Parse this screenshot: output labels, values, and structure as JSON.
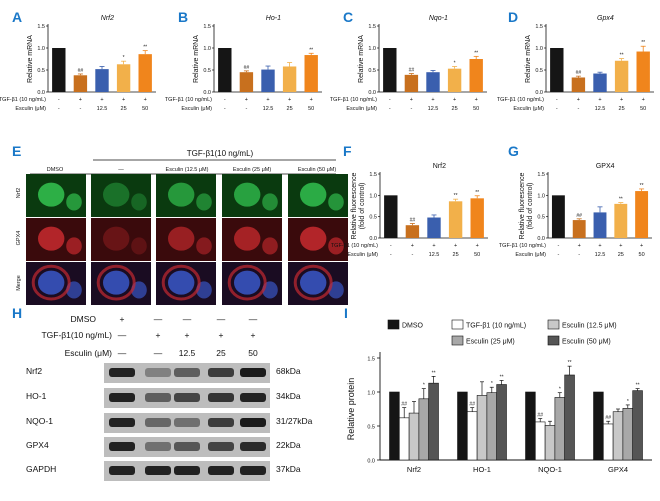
{
  "figure": {
    "panel_letters": [
      "A",
      "B",
      "C",
      "D",
      "E",
      "F",
      "G",
      "H",
      "I"
    ],
    "treatment_rows": {
      "tgf": "TGF-β1 (10 ng/mL)",
      "esculin": "Esculin (μM)",
      "tgf_marks": [
        "-",
        "+",
        "+",
        "+",
        "+"
      ],
      "esculin_marks": [
        "-",
        "-",
        "12.5",
        "25",
        "50"
      ]
    },
    "panel_e": {
      "header_condition": "TGF-β1(10 ng/mL)",
      "columns": [
        "DMSO",
        "—",
        "Esculin (12.5 μM)",
        "Esculin (25 μM)",
        "Esculin (50 μM)"
      ],
      "rows": [
        "Nrf2",
        "GPX4",
        "Merge"
      ],
      "row_colors": [
        "#22aa44",
        "#d42a2a",
        "#111111"
      ],
      "cell_colors": [
        "#0a3a0f",
        "#3a0a0c",
        "#1a0c22"
      ],
      "nucleus_colors": [
        "#2fb54a",
        "#c0282c",
        "#3a58c8"
      ]
    },
    "panel_h": {
      "rows": [
        {
          "label": "DMSO",
          "marks": [
            "+",
            "—",
            "—",
            "—",
            "—"
          ]
        },
        {
          "label": "TGF-β1(10 ng/mL)",
          "marks": [
            "—",
            "+",
            "+",
            "+",
            "+"
          ]
        },
        {
          "label": "Esculin (μM)",
          "marks": [
            "—",
            "—",
            "12.5",
            "25",
            "50"
          ]
        }
      ],
      "proteins": [
        "Nrf2",
        "HO-1",
        "NQO-1",
        "GPX4",
        "GAPDH"
      ],
      "kda": [
        "68kDa",
        "34kDa",
        "31/27kDa",
        "22kDa",
        "37kDa"
      ]
    },
    "panel_i": {
      "legend_labels": [
        "DMSO",
        "TGF-β1 (10 ng/mL)",
        "Esculin (12.5 μM)",
        "Esculin (25 μM)",
        "Esculin (50 μM)"
      ]
    }
  },
  "chart_data": [
    {
      "panel": "A",
      "type": "bar",
      "title": "Nrf2",
      "ylabel": "Relative mRNA",
      "ylim": [
        0,
        1.5
      ],
      "yticks": [
        "0.0",
        "0.5",
        "1.0",
        "1.5"
      ],
      "values": [
        1.0,
        0.38,
        0.52,
        0.63,
        0.86
      ],
      "errors": [
        0,
        0.03,
        0.06,
        0.07,
        0.08
      ],
      "annotations": [
        "",
        "##",
        "",
        "*",
        "**"
      ],
      "colors": [
        "#151515",
        "#c8701e",
        "#3a5fae",
        "#f2b04a",
        "#f0851c"
      ]
    },
    {
      "panel": "B",
      "type": "bar",
      "title": "Ho-1",
      "ylabel": "Relative mRNA",
      "ylim": [
        0,
        1.5
      ],
      "yticks": [
        "0.0",
        "0.5",
        "1.0",
        "1.5"
      ],
      "values": [
        1.0,
        0.45,
        0.51,
        0.58,
        0.84
      ],
      "errors": [
        0,
        0.03,
        0.08,
        0.09,
        0.04
      ],
      "annotations": [
        "",
        "##",
        "",
        "",
        "**"
      ],
      "colors": [
        "#151515",
        "#c8701e",
        "#3a5fae",
        "#f2b04a",
        "#f0851c"
      ]
    },
    {
      "panel": "C",
      "type": "bar",
      "title": "Nqo-1",
      "ylabel": "Relative mRNA",
      "ylim": [
        0,
        1.5
      ],
      "yticks": [
        "0.0",
        "0.5",
        "1.0",
        "1.5"
      ],
      "values": [
        1.0,
        0.39,
        0.45,
        0.53,
        0.75
      ],
      "errors": [
        0,
        0.03,
        0.04,
        0.05,
        0.06
      ],
      "annotations": [
        "",
        "##",
        "",
        "*",
        "**"
      ],
      "colors": [
        "#151515",
        "#c8701e",
        "#3a5fae",
        "#f2b04a",
        "#f0851c"
      ]
    },
    {
      "panel": "D",
      "type": "bar",
      "title": "Gpx4",
      "ylabel": "Relative mRNA",
      "ylim": [
        0,
        1.5
      ],
      "yticks": [
        "0.0",
        "0.5",
        "1.0",
        "1.5"
      ],
      "values": [
        1.0,
        0.33,
        0.42,
        0.71,
        0.92
      ],
      "errors": [
        0,
        0.03,
        0.03,
        0.05,
        0.12
      ],
      "annotations": [
        "",
        "##",
        "",
        "**",
        "**"
      ],
      "colors": [
        "#151515",
        "#c8701e",
        "#3a5fae",
        "#f2b04a",
        "#f0851c"
      ]
    },
    {
      "panel": "F",
      "type": "bar",
      "title": "Nrf2",
      "ylabel": "Relative fluorescence (fold of control)",
      "ylim": [
        0,
        1.5
      ],
      "yticks": [
        "0.0",
        "0.5",
        "1.0",
        "1.5"
      ],
      "values": [
        1.0,
        0.3,
        0.48,
        0.86,
        0.93
      ],
      "errors": [
        0,
        0.04,
        0.06,
        0.05,
        0.06
      ],
      "annotations": [
        "",
        "##",
        "",
        "**",
        "**"
      ],
      "colors": [
        "#151515",
        "#c8701e",
        "#3a5fae",
        "#f2b04a",
        "#f0851c"
      ]
    },
    {
      "panel": "G",
      "type": "bar",
      "title": "GPX4",
      "ylabel": "Relative fluorescence (fold of control)",
      "ylim": [
        0,
        1.5
      ],
      "yticks": [
        "0.0",
        "0.5",
        "1.0",
        "1.5"
      ],
      "values": [
        1.0,
        0.42,
        0.6,
        0.8,
        1.1
      ],
      "errors": [
        0,
        0.03,
        0.13,
        0.03,
        0.05
      ],
      "annotations": [
        "",
        "##",
        "",
        "**",
        "**"
      ],
      "colors": [
        "#151515",
        "#c8701e",
        "#3a5fae",
        "#f2b04a",
        "#f0851c"
      ]
    },
    {
      "panel": "I",
      "type": "bar",
      "ylabel": "Relative protein",
      "ylim": [
        0,
        1.5
      ],
      "yticks": [
        "0.0",
        "0.5",
        "1.0",
        "1.5"
      ],
      "categories": [
        "Nrf2",
        "HO-1",
        "NQO-1",
        "GPX4"
      ],
      "series": [
        {
          "name": "DMSO",
          "values": [
            1.0,
            1.0,
            1.0,
            1.0
          ],
          "errors": [
            0,
            0,
            0,
            0
          ],
          "annotations": [
            "",
            "",
            "",
            ""
          ]
        },
        {
          "name": "TGF-β1 (10 ng/mL)",
          "values": [
            0.62,
            0.71,
            0.56,
            0.53
          ],
          "errors": [
            0.15,
            0.06,
            0.05,
            0.04
          ],
          "annotations": [
            "##",
            "##",
            "##",
            "##"
          ]
        },
        {
          "name": "Esculin (12.5 μM)",
          "values": [
            0.69,
            0.95,
            0.51,
            0.71
          ],
          "errors": [
            0.17,
            0.2,
            0.06,
            0.04
          ],
          "annotations": [
            "",
            "",
            "",
            ""
          ]
        },
        {
          "name": "Esculin (25 μM)",
          "values": [
            0.9,
            0.99,
            0.92,
            0.76
          ],
          "errors": [
            0.15,
            0.08,
            0.07,
            0.05
          ],
          "annotations": [
            "*",
            "*",
            "*",
            "*"
          ]
        },
        {
          "name": "Esculin (50 μM)",
          "values": [
            1.13,
            1.11,
            1.25,
            1.02
          ],
          "errors": [
            0.1,
            0.06,
            0.13,
            0.03
          ],
          "annotations": [
            "**",
            "**",
            "**",
            "**"
          ]
        }
      ],
      "legend": "top",
      "fills": [
        "#151515",
        "#ffffff",
        "#c8c8c8",
        "#a8a8a8",
        "#555555"
      ]
    }
  ]
}
